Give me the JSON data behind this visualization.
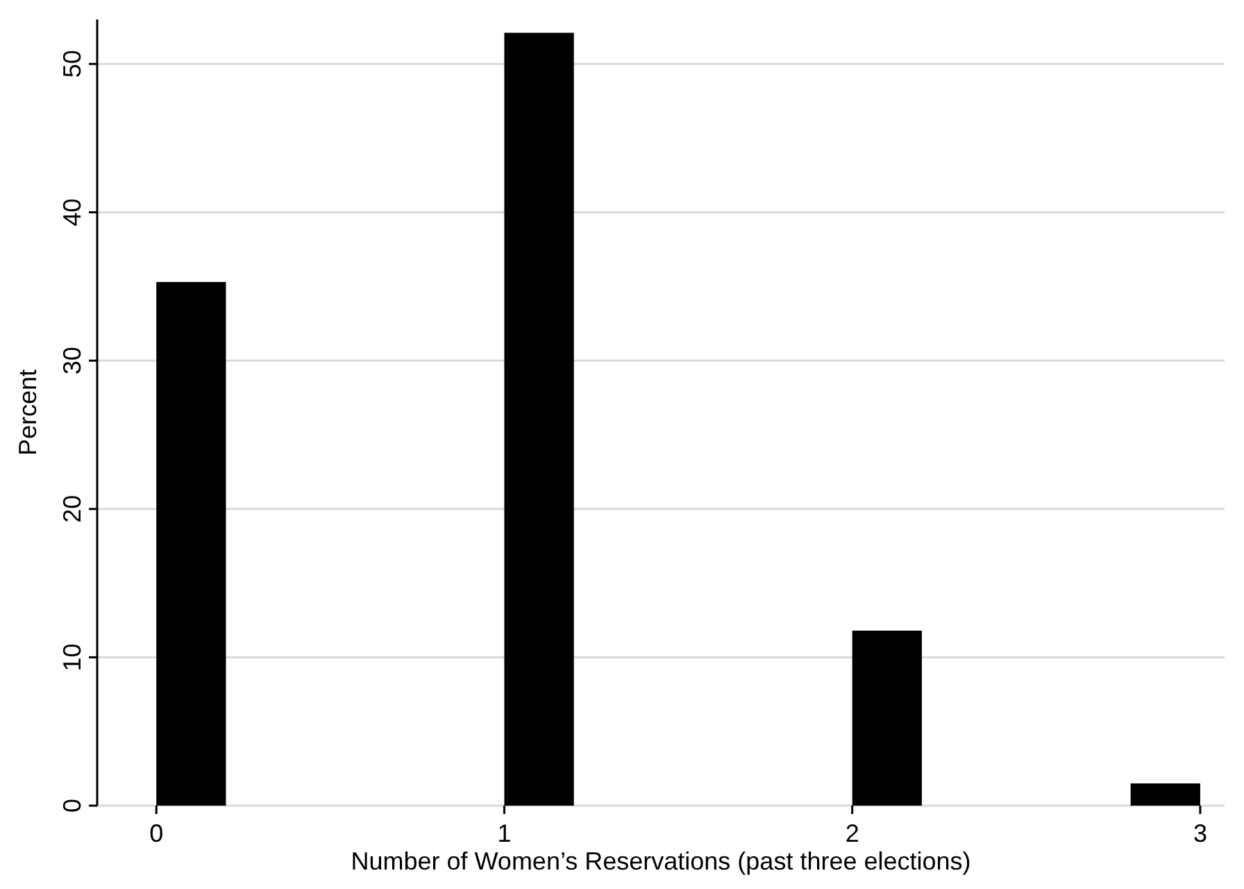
{
  "chart_data": {
    "type": "histogram",
    "xlabel": "Number of Women’s Reservations (past three elections)",
    "ylabel": "Percent",
    "bins": [
      0,
      0.2,
      0.4,
      0.6,
      0.8,
      1.0,
      1.2,
      1.4,
      1.6,
      1.8,
      2.0,
      2.2,
      2.4,
      2.6,
      2.8,
      3.0
    ],
    "values": [
      35.3,
      0,
      0,
      0,
      0,
      52.1,
      0,
      0,
      0,
      0,
      11.8,
      0,
      0,
      0,
      1.5
    ],
    "color": "#000000",
    "xlim": [
      -0.17,
      3.07
    ],
    "ylim": [
      0,
      53
    ],
    "xticks": [
      0,
      1,
      2,
      3
    ],
    "yticks": [
      0,
      10,
      20,
      30,
      40,
      50
    ],
    "grid": "y"
  }
}
